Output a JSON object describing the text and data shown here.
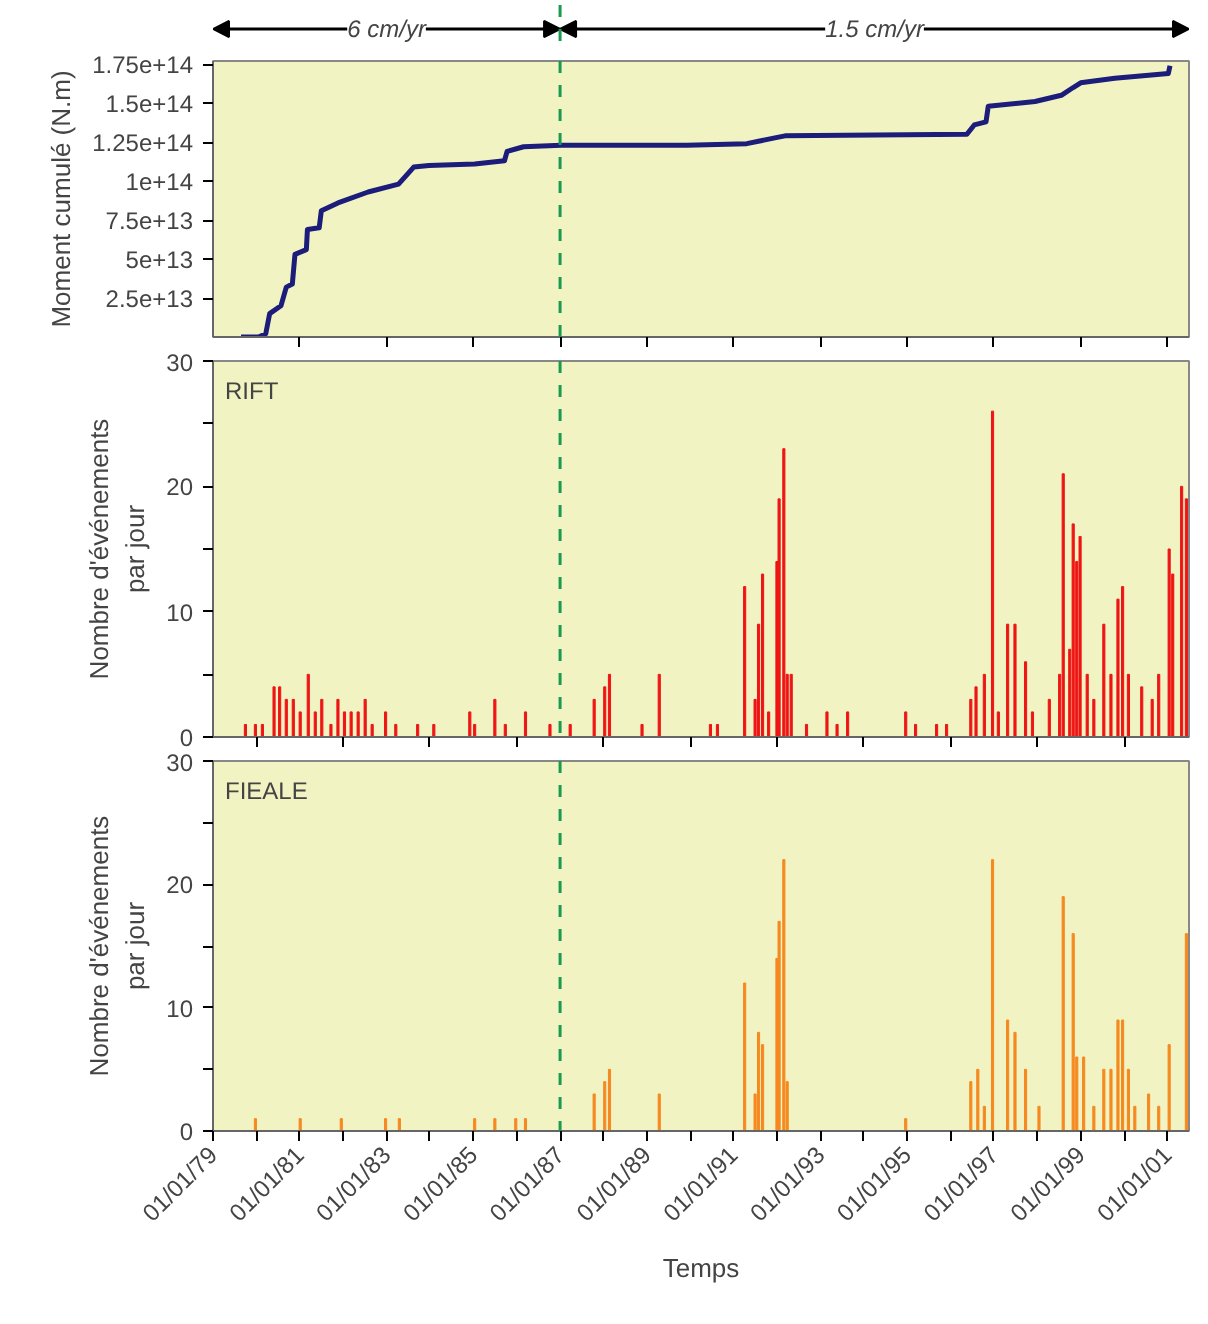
{
  "chart_data": [
    {
      "type": "line",
      "ylabel": "Moment cumulé (N.m)",
      "annotations": [
        "6 cm/yr",
        "1.5 cm/yr"
      ],
      "xlim": [
        "1979-01-01",
        "2001-07-01"
      ],
      "ylim": [
        0,
        177000000000000.0
      ],
      "xticks": [
        {
          "value": "1981-01-01",
          "label": null
        },
        {
          "value": "1983-01-01",
          "label": null
        },
        {
          "value": "1985-01-01",
          "label": null
        },
        {
          "value": "1987-01-01",
          "label": null
        },
        {
          "value": "1989-01-01",
          "label": null
        },
        {
          "value": "1991-01-01",
          "label": null
        },
        {
          "value": "1993-01-01",
          "label": null
        },
        {
          "value": "1995-01-01",
          "label": null
        },
        {
          "value": "1997-01-01",
          "label": null
        },
        {
          "value": "1999-01-01",
          "label": null
        },
        {
          "value": "2001-01-01",
          "label": null
        }
      ],
      "yticks": [
        {
          "value": 25000000000000.0,
          "label": "2.5e+13"
        },
        {
          "value": 50000000000000.0,
          "label": "5e+13"
        },
        {
          "value": 75000000000000.0,
          "label": "7.5e+13"
        },
        {
          "value": 100000000000000.0,
          "label": "1e+14"
        },
        {
          "value": 125000000000000.0,
          "label": "1.25e+14"
        },
        {
          "value": 150000000000000.0,
          "label": "1.5e+14"
        },
        {
          "value": 175000000000000.0,
          "label": "1.75e+14"
        }
      ],
      "tick_labels": "y",
      "ref_lines": [
        {
          "axis": "x",
          "value": "1987-01-01",
          "color": "#1a9a50",
          "line_style": "dashed"
        }
      ],
      "x": [
        "1979-08-25",
        "1980-01-19",
        "1980-03-20",
        "1980-04-22",
        "1980-07-26",
        "1980-09-09",
        "1980-10-30",
        "1980-11-21",
        "1981-02-25",
        "1981-03-06",
        "1981-06-13",
        "1981-07-01",
        "1981-11-18",
        "1982-07-30",
        "1983-04-12",
        "1983-08-18",
        "1983-12-24",
        "1985-01-12",
        "1985-09-20",
        "1985-10-12",
        "1986-02-28",
        "1987-01-12",
        "1989-12-02",
        "1991-04-22",
        "1992-01-04",
        "1992-03-09",
        "1996-05-18",
        "1996-07-19",
        "1996-10-26",
        "1996-11-14",
        "1997-12-13",
        "1998-07-22",
        "1998-10-30",
        "1999-01-01",
        "1999-10-15",
        "2001-01-08",
        "2001-01-22"
      ],
      "series": [
        {
          "color": "#1c1c7a",
          "values": [
            0,
            0,
            2000000000000.0,
            15000000000000.0,
            20000000000000.0,
            32000000000000.0,
            34000000000000.0,
            53000000000000.0,
            56000000000000.0,
            69000000000000.0,
            70000000000000.0,
            81000000000000.0,
            86000000000000.0,
            93000000000000.0,
            98000000000000.0,
            109000000000000.0,
            110000000000000.0,
            111000000000000.0,
            113000000000000.0,
            119000000000000.0,
            122000000000000.0,
            123000000000000.0,
            123000000000000.0,
            124000000000000.0,
            128000000000000.0,
            129000000000000.0,
            130000000000000.0,
            136000000000000.0,
            138000000000000.0,
            148000000000000.0,
            151000000000000.0,
            155000000000000.0,
            160000000000000.0,
            163000000000000.0,
            166000000000000.0,
            169000000000000.0,
            174000000000000.0
          ]
        }
      ]
    },
    {
      "type": "bar",
      "title": "RIFT",
      "ylabel": "Nombre d'événements par jour",
      "xlim": [
        "1979-01-01",
        "2001-07-01"
      ],
      "ylim": [
        0,
        30
      ],
      "xticks": [
        {
          "value": "1980-01-01",
          "label": null
        },
        {
          "value": "1982-01-01",
          "label": null
        },
        {
          "value": "1984-01-01",
          "label": null
        },
        {
          "value": "1986-01-01",
          "label": null
        },
        {
          "value": "1988-01-01",
          "label": null
        },
        {
          "value": "1990-01-01",
          "label": null
        },
        {
          "value": "1992-01-01",
          "label": null
        },
        {
          "value": "1994-01-01",
          "label": null
        },
        {
          "value": "1996-01-01",
          "label": null
        },
        {
          "value": "1998-01-01",
          "label": null
        },
        {
          "value": "2000-01-01",
          "label": null
        }
      ],
      "yticks": [
        0,
        {
          "value": 5,
          "label": null
        },
        10,
        {
          "value": 15,
          "label": null
        },
        20,
        {
          "value": 25,
          "label": null
        },
        30
      ],
      "tick_labels": "y",
      "ref_lines": [
        {
          "axis": "x",
          "value": "1987-01-01",
          "color": "#1a9a50",
          "line_style": "dashed"
        }
      ],
      "x": [
        "1979-10-01",
        "1979-12-24",
        "1980-02-21",
        "1980-05-29",
        "1980-07-15",
        "1980-09-09",
        "1980-11-07",
        "1981-01-04",
        "1981-03-13",
        "1981-05-11",
        "1981-07-05",
        "1981-09-20",
        "1981-11-18",
        "1982-01-12",
        "1982-03-09",
        "1982-05-07",
        "1982-07-05",
        "1982-09-02",
        "1982-12-24",
        "1983-03-20",
        "1983-09-20",
        "1984-02-03",
        "1984-12-02",
        "1985-01-12",
        "1985-07-01",
        "1985-09-27",
        "1986-03-16",
        "1986-10-08",
        "1987-03-27",
        "1987-10-15",
        "1988-01-12",
        "1988-02-21",
        "1988-11-21",
        "1989-04-15",
        "1990-06-20",
        "1990-08-18",
        "1991-04-04",
        "1991-07-01",
        "1991-07-30",
        "1991-09-02",
        "1991-10-23",
        "1992-01-01",
        "1992-01-19",
        "1992-02-28",
        "1992-03-27",
        "1992-04-30",
        "1992-09-06",
        "1993-02-25",
        "1993-05-21",
        "1993-08-18",
        "1994-12-20",
        "1995-03-13",
        "1995-09-06",
        "1995-11-29",
        "1996-06-20",
        "1996-08-03",
        "1996-10-12",
        "1996-12-20",
        "1997-02-07",
        "1997-04-26",
        "1997-06-27",
        "1997-09-24",
        "1997-11-21",
        "1998-04-12",
        "1998-07-08",
        "1998-08-07",
        "1998-10-01",
        "1998-10-30",
        "1998-11-29",
        "1998-12-27",
        "1999-02-25",
        "1999-04-22",
        "1999-07-15",
        "1999-09-13",
        "1999-11-11",
        "1999-12-20",
        "2000-02-07",
        "2000-05-29",
        "2000-08-25",
        "2000-10-19",
        "2001-01-15",
        "2001-02-14",
        "2001-04-30",
        "2001-06-09"
      ],
      "series": [
        {
          "color": "#ee1515",
          "values": [
            1,
            1,
            1,
            4,
            4,
            3,
            3,
            2,
            5,
            2,
            3,
            1,
            3,
            2,
            2,
            2,
            3,
            1,
            2,
            1,
            1,
            1,
            2,
            1,
            3,
            1,
            2,
            1,
            1,
            3,
            4,
            5,
            1,
            5,
            1,
            1,
            12,
            3,
            9,
            13,
            2,
            14,
            19,
            23,
            5,
            5,
            1,
            2,
            1,
            2,
            2,
            1,
            1,
            1,
            3,
            4,
            5,
            26,
            2,
            9,
            9,
            6,
            2,
            3,
            5,
            21,
            7,
            17,
            14,
            16,
            5,
            3,
            9,
            5,
            11,
            12,
            5,
            4,
            3,
            5,
            15,
            13,
            20,
            19
          ]
        }
      ]
    },
    {
      "type": "bar",
      "title": "FIEALE",
      "ylabel": "Nombre d'événements par jour",
      "xlabel": "Temps",
      "xlim": [
        "1979-01-01",
        "2001-07-01"
      ],
      "ylim": [
        0,
        30
      ],
      "xticks": [
        {
          "value": "1979-01-01",
          "label": "01/01/79"
        },
        {
          "value": "1980-01-01",
          "label": null
        },
        {
          "value": "1981-01-01",
          "label": "01/01/81"
        },
        {
          "value": "1982-01-01",
          "label": null
        },
        {
          "value": "1983-01-01",
          "label": "01/01/83"
        },
        {
          "value": "1984-01-01",
          "label": null
        },
        {
          "value": "1985-01-01",
          "label": "01/01/85"
        },
        {
          "value": "1986-01-01",
          "label": null
        },
        {
          "value": "1987-01-01",
          "label": "01/01/87"
        },
        {
          "value": "1988-01-01",
          "label": null
        },
        {
          "value": "1989-01-01",
          "label": "01/01/89"
        },
        {
          "value": "1990-01-01",
          "label": null
        },
        {
          "value": "1991-01-01",
          "label": "01/01/91"
        },
        {
          "value": "1992-01-01",
          "label": null
        },
        {
          "value": "1993-01-01",
          "label": "01/01/93"
        },
        {
          "value": "1994-01-01",
          "label": null
        },
        {
          "value": "1995-01-01",
          "label": "01/01/95"
        },
        {
          "value": "1996-01-01",
          "label": null
        },
        {
          "value": "1997-01-01",
          "label": "01/01/97"
        },
        {
          "value": "1998-01-01",
          "label": null
        },
        {
          "value": "1999-01-01",
          "label": "01/01/99"
        },
        {
          "value": "2000-01-01",
          "label": null
        },
        {
          "value": "2001-01-01",
          "label": "01/01/01"
        }
      ],
      "yticks": [
        0,
        {
          "value": 5,
          "label": null
        },
        10,
        {
          "value": 15,
          "label": null
        },
        20,
        {
          "value": 25,
          "label": null
        },
        30
      ],
      "ref_lines": [
        {
          "axis": "x",
          "value": "1987-01-01",
          "color": "#1a9a50",
          "line_style": "dashed"
        }
      ],
      "x": [
        "1979-12-24",
        "1981-01-04",
        "1981-12-16",
        "1982-12-24",
        "1983-04-19",
        "1985-01-12",
        "1985-07-01",
        "1985-12-24",
        "1986-03-16",
        "1987-10-15",
        "1988-01-12",
        "1988-02-21",
        "1989-04-15",
        "1991-04-04",
        "1991-07-01",
        "1991-07-30",
        "1991-09-02",
        "1992-01-01",
        "1992-01-19",
        "1992-02-28",
        "1992-03-27",
        "1994-12-20",
        "1996-06-20",
        "1996-08-18",
        "1996-10-12",
        "1996-12-20",
        "1997-04-26",
        "1997-06-27",
        "1997-09-24",
        "1998-01-15",
        "1998-08-07",
        "1998-10-30",
        "1998-11-29",
        "1999-01-26",
        "1999-04-22",
        "1999-07-15",
        "1999-09-13",
        "1999-11-11",
        "1999-12-20",
        "2000-02-07",
        "2000-04-01",
        "2000-07-26",
        "2000-10-19",
        "2001-01-15",
        "2001-06-09"
      ],
      "series": [
        {
          "color": "#f5891f",
          "values": [
            1,
            1,
            1,
            1,
            1,
            1,
            1,
            1,
            1,
            3,
            4,
            5,
            3,
            12,
            3,
            8,
            7,
            14,
            17,
            22,
            4,
            1,
            4,
            5,
            2,
            22,
            9,
            8,
            5,
            2,
            19,
            16,
            6,
            6,
            2,
            5,
            5,
            9,
            9,
            5,
            2,
            3,
            2,
            7,
            16
          ]
        }
      ]
    }
  ]
}
